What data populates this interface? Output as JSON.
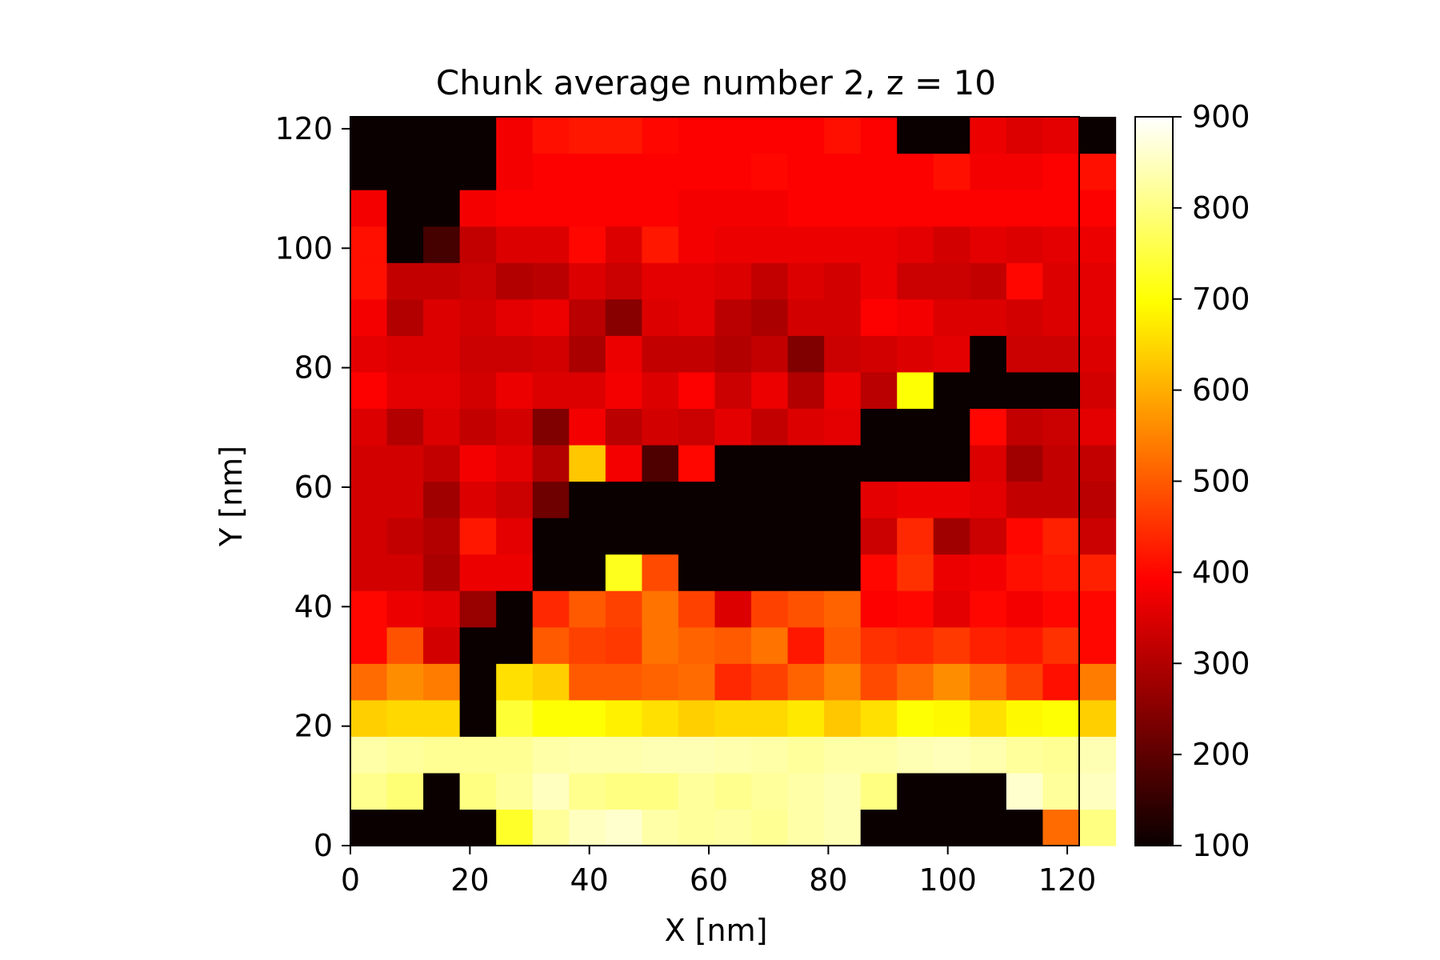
{
  "chart_data": {
    "type": "heatmap",
    "title": "Chunk average number 2, z = 10",
    "xlabel": "X [nm]",
    "ylabel": "Y [nm]",
    "colormap": "hot",
    "cell_size": 6.1,
    "xlim": [
      0,
      122
    ],
    "ylim": [
      0,
      122
    ],
    "x_ticks": [
      0,
      20,
      40,
      60,
      80,
      100,
      120
    ],
    "y_ticks": [
      0,
      20,
      40,
      60,
      80,
      100,
      120
    ],
    "clim": [
      100,
      900
    ],
    "colorbar_ticks": [
      100,
      200,
      300,
      400,
      500,
      600,
      700,
      800,
      900
    ],
    "values": [
      [
        100,
        100,
        100,
        100,
        730,
        820,
        850,
        860,
        830,
        820,
        825,
        815,
        830,
        840,
        100,
        100,
        100,
        100,
        100,
        520,
        800
      ],
      [
        810,
        790,
        100,
        800,
        820,
        850,
        810,
        800,
        800,
        820,
        810,
        820,
        830,
        840,
        800,
        100,
        100,
        100,
        860,
        820,
        850
      ],
      [
        830,
        820,
        815,
        815,
        815,
        830,
        835,
        835,
        840,
        840,
        835,
        830,
        820,
        830,
        830,
        840,
        845,
        835,
        820,
        815,
        840
      ],
      [
        640,
        650,
        650,
        100,
        740,
        700,
        700,
        680,
        660,
        640,
        650,
        650,
        670,
        630,
        660,
        700,
        690,
        660,
        690,
        700,
        640
      ],
      [
        520,
        560,
        540,
        100,
        660,
        640,
        500,
        500,
        510,
        520,
        440,
        470,
        510,
        550,
        480,
        520,
        560,
        520,
        470,
        410,
        540
      ],
      [
        400,
        490,
        340,
        100,
        100,
        500,
        470,
        460,
        530,
        510,
        500,
        530,
        420,
        500,
        450,
        440,
        460,
        430,
        420,
        450,
        400
      ],
      [
        400,
        370,
        360,
        270,
        100,
        440,
        500,
        470,
        530,
        470,
        350,
        470,
        490,
        510,
        390,
        400,
        360,
        400,
        380,
        400,
        400
      ],
      [
        340,
        340,
        290,
        370,
        370,
        100,
        100,
        720,
        480,
        100,
        100,
        100,
        100,
        100,
        400,
        450,
        370,
        380,
        410,
        420,
        430
      ],
      [
        340,
        320,
        300,
        420,
        360,
        100,
        100,
        100,
        100,
        100,
        100,
        100,
        100,
        100,
        330,
        440,
        280,
        330,
        400,
        430,
        330
      ],
      [
        340,
        340,
        280,
        350,
        330,
        220,
        100,
        100,
        100,
        100,
        100,
        100,
        100,
        100,
        360,
        370,
        370,
        360,
        320,
        320,
        310
      ],
      [
        340,
        340,
        320,
        380,
        360,
        300,
        630,
        380,
        180,
        400,
        100,
        100,
        100,
        100,
        100,
        100,
        100,
        350,
        280,
        320,
        320
      ],
      [
        350,
        300,
        350,
        320,
        340,
        240,
        380,
        310,
        340,
        330,
        360,
        320,
        350,
        360,
        100,
        100,
        100,
        400,
        320,
        330,
        360
      ],
      [
        390,
        360,
        360,
        340,
        370,
        350,
        350,
        380,
        350,
        390,
        330,
        370,
        300,
        370,
        310,
        700,
        100,
        100,
        100,
        100,
        340
      ],
      [
        360,
        350,
        350,
        330,
        330,
        340,
        290,
        370,
        320,
        320,
        300,
        320,
        240,
        330,
        340,
        350,
        360,
        100,
        330,
        330,
        350
      ],
      [
        380,
        300,
        350,
        340,
        360,
        370,
        310,
        250,
        350,
        360,
        310,
        290,
        340,
        340,
        390,
        380,
        350,
        350,
        340,
        350,
        360
      ],
      [
        410,
        320,
        320,
        330,
        300,
        310,
        350,
        330,
        360,
        360,
        350,
        320,
        350,
        340,
        370,
        330,
        330,
        320,
        400,
        350,
        360
      ],
      [
        410,
        100,
        170,
        320,
        350,
        350,
        400,
        350,
        420,
        380,
        370,
        370,
        370,
        370,
        370,
        360,
        340,
        360,
        350,
        360,
        370
      ],
      [
        380,
        100,
        100,
        380,
        390,
        390,
        390,
        390,
        390,
        380,
        380,
        380,
        390,
        390,
        390,
        390,
        390,
        390,
        390,
        390,
        390
      ],
      [
        100,
        100,
        100,
        100,
        380,
        390,
        390,
        390,
        390,
        390,
        390,
        400,
        390,
        390,
        390,
        390,
        410,
        380,
        380,
        390,
        410
      ],
      [
        100,
        100,
        100,
        100,
        380,
        410,
        420,
        420,
        400,
        390,
        390,
        390,
        390,
        410,
        390,
        100,
        100,
        370,
        350,
        360,
        100
      ]
    ]
  }
}
